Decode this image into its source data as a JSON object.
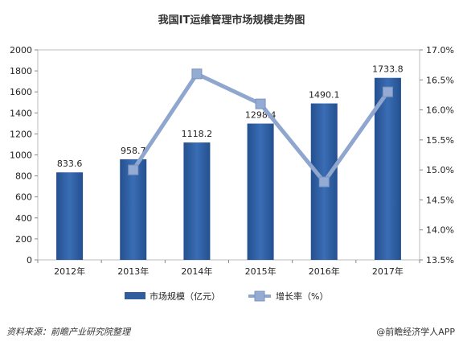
{
  "chart_data": {
    "type": "bar",
    "title": "我国IT运维管理市场规模走势图",
    "categories": [
      "2012年",
      "2013年",
      "2014年",
      "2015年",
      "2016年",
      "2017年"
    ],
    "series": [
      {
        "name": "市场规模（亿元）",
        "type": "bar",
        "axis": "left",
        "values": [
          833.6,
          958.7,
          1118.2,
          1298.4,
          1490.1,
          1733.8
        ],
        "data_labels": [
          "833.6",
          "958.7",
          "1118.2",
          "1298.4",
          "1490.1",
          "1733.8"
        ],
        "color": "#2f5d9e"
      },
      {
        "name": "增长率（%）",
        "type": "line",
        "axis": "right",
        "values": [
          null,
          15.0,
          16.6,
          16.1,
          14.8,
          16.3
        ],
        "color": "#8fa6cf"
      }
    ],
    "y_left": {
      "min": 0,
      "max": 2000,
      "step": 200,
      "tick_labels": [
        "0",
        "200",
        "400",
        "600",
        "800",
        "1000",
        "1200",
        "1400",
        "1600",
        "1800",
        "2000"
      ]
    },
    "y_right": {
      "min": 13.5,
      "max": 17.0,
      "step": 0.5,
      "tick_labels": [
        "13.5%",
        "14.0%",
        "14.5%",
        "15.0%",
        "15.5%",
        "16.0%",
        "16.5%",
        "17.0%"
      ]
    },
    "grid": false,
    "legend_position": "bottom"
  },
  "footer": {
    "source": "资料来源：前瞻产业研究院整理",
    "brand": "@前瞻经济学人APP"
  }
}
